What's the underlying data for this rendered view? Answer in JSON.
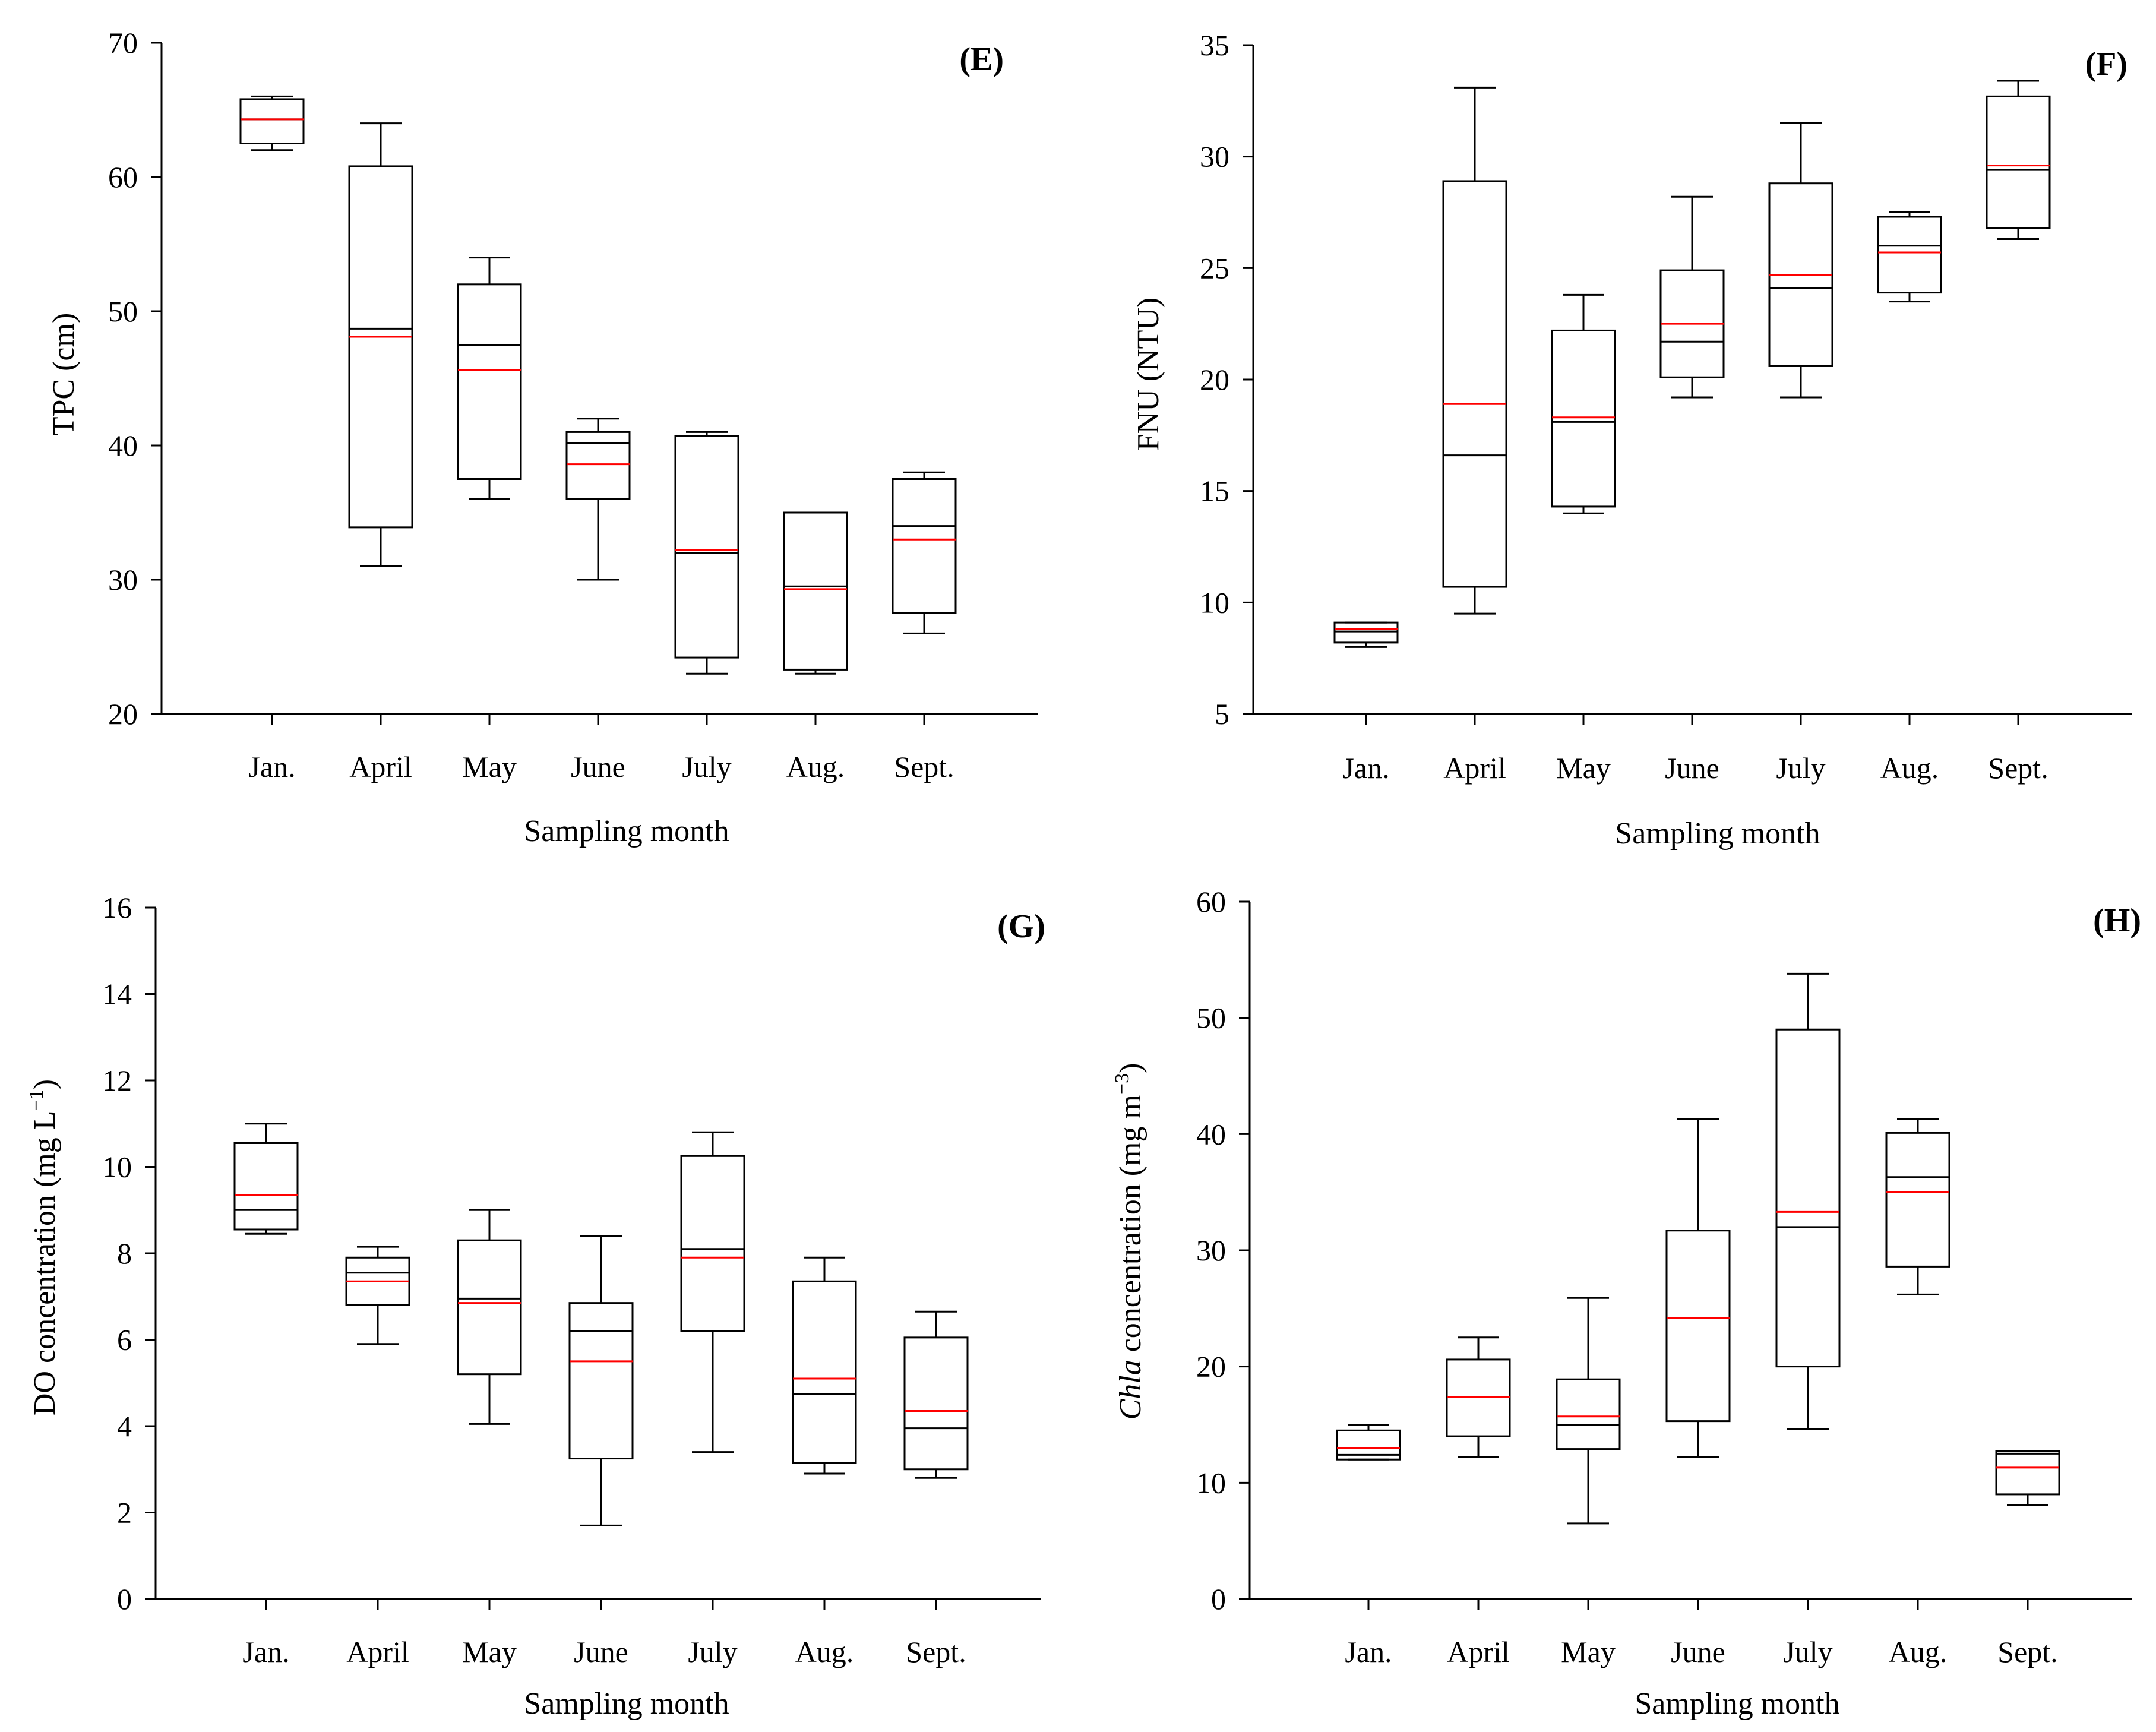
{
  "colors": {
    "axis": "#000000",
    "box": "#000000",
    "median": "#000000",
    "mean": "#ff0000",
    "background": "#ffffff"
  },
  "chart_data": [
    {
      "type": "boxplot",
      "panel_label": "(E)",
      "xlabel": "Sampling month",
      "ylabel": "TPC (cm)",
      "ylim": [
        20,
        70
      ],
      "yticks": [
        "20",
        "30",
        "40",
        "50",
        "60",
        "70"
      ],
      "categories": [
        "Jan.",
        "April",
        "May",
        "June",
        "July",
        "Aug.",
        "Sept."
      ],
      "boxes": [
        {
          "whisker_low": 62,
          "q1": 62.5,
          "median": 64.3,
          "mean": 64.3,
          "q3": 65.8,
          "whisker_high": 66
        },
        {
          "whisker_low": 31,
          "q1": 33.9,
          "median": 48.7,
          "mean": 48.1,
          "q3": 60.8,
          "whisker_high": 64
        },
        {
          "whisker_low": 36,
          "q1": 37.5,
          "median": 47.5,
          "mean": 45.6,
          "q3": 52,
          "whisker_high": 54
        },
        {
          "whisker_low": 30,
          "q1": 36,
          "median": 40.2,
          "mean": 38.6,
          "q3": 41,
          "whisker_high": 42
        },
        {
          "whisker_low": 23,
          "q1": 24.2,
          "median": 32,
          "mean": 32.2,
          "q3": 40.7,
          "whisker_high": 41
        },
        {
          "whisker_low": 23,
          "q1": 23.3,
          "median": 29.5,
          "mean": 29.3,
          "q3": 35,
          "whisker_high": 35
        },
        {
          "whisker_low": 26,
          "q1": 27.5,
          "median": 34,
          "mean": 33,
          "q3": 37.5,
          "whisker_high": 38
        }
      ]
    },
    {
      "type": "boxplot",
      "panel_label": "(F)",
      "xlabel": "Sampling month",
      "ylabel": "FNU (NTU)",
      "ylim": [
        5,
        35
      ],
      "yticks": [
        "5",
        "10",
        "15",
        "20",
        "25",
        "30",
        "35"
      ],
      "categories": [
        "Jan.",
        "April",
        "May",
        "June",
        "July",
        "Aug.",
        "Sept."
      ],
      "boxes": [
        {
          "whisker_low": 8,
          "q1": 8.2,
          "median": 8.7,
          "mean": 8.8,
          "q3": 9.1,
          "whisker_high": 9.1
        },
        {
          "whisker_low": 9.5,
          "q1": 10.7,
          "median": 16.6,
          "mean": 18.9,
          "q3": 28.9,
          "whisker_high": 33.1
        },
        {
          "whisker_low": 14,
          "q1": 14.3,
          "median": 18.1,
          "mean": 18.3,
          "q3": 22.2,
          "whisker_high": 23.8
        },
        {
          "whisker_low": 19.2,
          "q1": 20.1,
          "median": 21.7,
          "mean": 22.5,
          "q3": 24.9,
          "whisker_high": 28.2
        },
        {
          "whisker_low": 19.2,
          "q1": 20.6,
          "median": 24.1,
          "mean": 24.7,
          "q3": 28.8,
          "whisker_high": 31.5
        },
        {
          "whisker_low": 23.5,
          "q1": 23.9,
          "median": 26,
          "mean": 25.7,
          "q3": 27.3,
          "whisker_high": 27.5
        },
        {
          "whisker_low": 26.3,
          "q1": 26.8,
          "median": 29.4,
          "mean": 29.6,
          "q3": 32.7,
          "whisker_high": 33.4
        }
      ]
    },
    {
      "type": "boxplot",
      "panel_label": "(G)",
      "xlabel": "Sampling month",
      "ylabel_parts": [
        "DO concentration (mg L",
        "−1",
        ")"
      ],
      "ylim": [
        0,
        16
      ],
      "yticks": [
        "0",
        "2",
        "4",
        "6",
        "8",
        "10",
        "12",
        "14",
        "16"
      ],
      "categories": [
        "Jan.",
        "April",
        "May",
        "June",
        "July",
        "Aug.",
        "Sept."
      ],
      "boxes": [
        {
          "whisker_low": 8.45,
          "q1": 8.55,
          "median": 9,
          "mean": 9.35,
          "q3": 10.55,
          "whisker_high": 11
        },
        {
          "whisker_low": 5.9,
          "q1": 6.8,
          "median": 7.55,
          "mean": 7.35,
          "q3": 7.9,
          "whisker_high": 8.15
        },
        {
          "whisker_low": 4.05,
          "q1": 5.2,
          "median": 6.95,
          "mean": 6.85,
          "q3": 8.3,
          "whisker_high": 9
        },
        {
          "whisker_low": 1.7,
          "q1": 3.25,
          "median": 6.2,
          "mean": 5.5,
          "q3": 6.85,
          "whisker_high": 8.4
        },
        {
          "whisker_low": 3.4,
          "q1": 6.2,
          "median": 8.1,
          "mean": 7.9,
          "q3": 10.25,
          "whisker_high": 10.8
        },
        {
          "whisker_low": 2.9,
          "q1": 3.15,
          "median": 4.75,
          "mean": 5.1,
          "q3": 7.35,
          "whisker_high": 7.9
        },
        {
          "whisker_low": 2.8,
          "q1": 3,
          "median": 3.95,
          "mean": 4.35,
          "q3": 6.05,
          "whisker_high": 6.65
        }
      ]
    },
    {
      "type": "boxplot",
      "panel_label": "(H)",
      "xlabel": "Sampling month",
      "ylabel_parts": [
        "Chla",
        " concentration (mg m",
        "−3",
        ")"
      ],
      "ylim": [
        0,
        60
      ],
      "yticks": [
        "0",
        "10",
        "20",
        "30",
        "40",
        "50",
        "60"
      ],
      "categories": [
        "Jan.",
        "April",
        "May",
        "June",
        "July",
        "Aug.",
        "Sept."
      ],
      "boxes": [
        {
          "whisker_low": 12,
          "q1": 12,
          "median": 12.4,
          "mean": 13,
          "q3": 14.5,
          "whisker_high": 15
        },
        {
          "whisker_low": 12.2,
          "q1": 14,
          "median": 17.4,
          "mean": 17.4,
          "q3": 20.6,
          "whisker_high": 22.5
        },
        {
          "whisker_low": 6.5,
          "q1": 12.9,
          "median": 15,
          "mean": 15.7,
          "q3": 18.9,
          "whisker_high": 25.9
        },
        {
          "whisker_low": 12.2,
          "q1": 15.3,
          "median": 24.2,
          "mean": 24.2,
          "q3": 31.7,
          "whisker_high": 41.3
        },
        {
          "whisker_low": 14.6,
          "q1": 20,
          "median": 32,
          "mean": 33.3,
          "q3": 49,
          "whisker_high": 53.8
        },
        {
          "whisker_low": 26.2,
          "q1": 28.6,
          "median": 36.3,
          "mean": 35,
          "q3": 40.1,
          "whisker_high": 41.3
        },
        {
          "whisker_low": 8.1,
          "q1": 9,
          "median": 12.5,
          "mean": 11.3,
          "q3": 12.7,
          "whisker_high": 12.7
        }
      ]
    }
  ]
}
